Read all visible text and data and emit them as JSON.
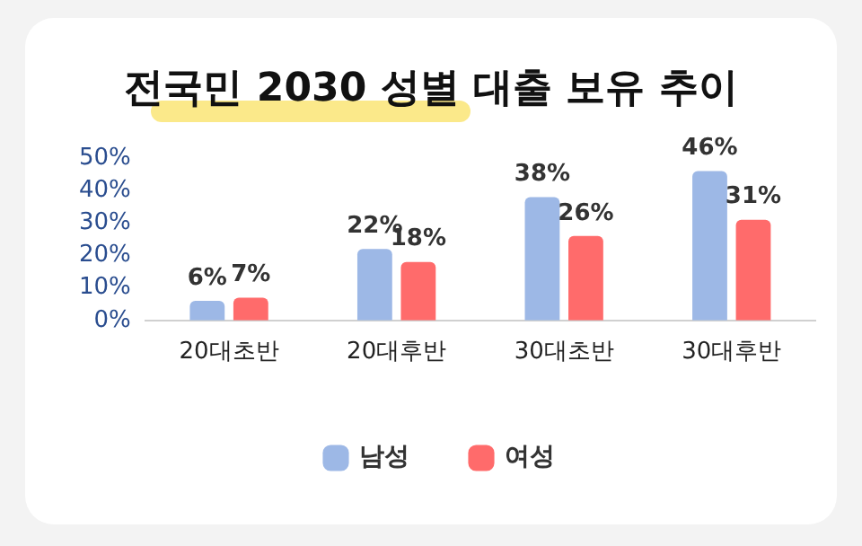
{
  "chart_data": {
    "type": "bar",
    "title": "전국민 2030 성별 대출 보유 추이",
    "categories": [
      "20대초반",
      "20대후반",
      "30대초반",
      "30대후반"
    ],
    "series": [
      {
        "name": "남성",
        "color": "#9db8e6",
        "values": [
          6,
          22,
          38,
          46
        ],
        "value_labels": [
          "6%",
          "22%",
          "38%",
          "46%"
        ]
      },
      {
        "name": "여성",
        "color": "#ff6b6b",
        "values": [
          7,
          18,
          26,
          31
        ],
        "value_labels": [
          "7%",
          "18%",
          "26%",
          "31%"
        ]
      }
    ],
    "ylim": [
      0,
      50
    ],
    "yticks": [
      {
        "value": 0,
        "label": "0%"
      },
      {
        "value": 10,
        "label": "10%"
      },
      {
        "value": 20,
        "label": "20%"
      },
      {
        "value": 30,
        "label": "30%"
      },
      {
        "value": 40,
        "label": "40%"
      },
      {
        "value": 50,
        "label": "50%"
      }
    ],
    "grid": false,
    "legend": "bottom"
  }
}
